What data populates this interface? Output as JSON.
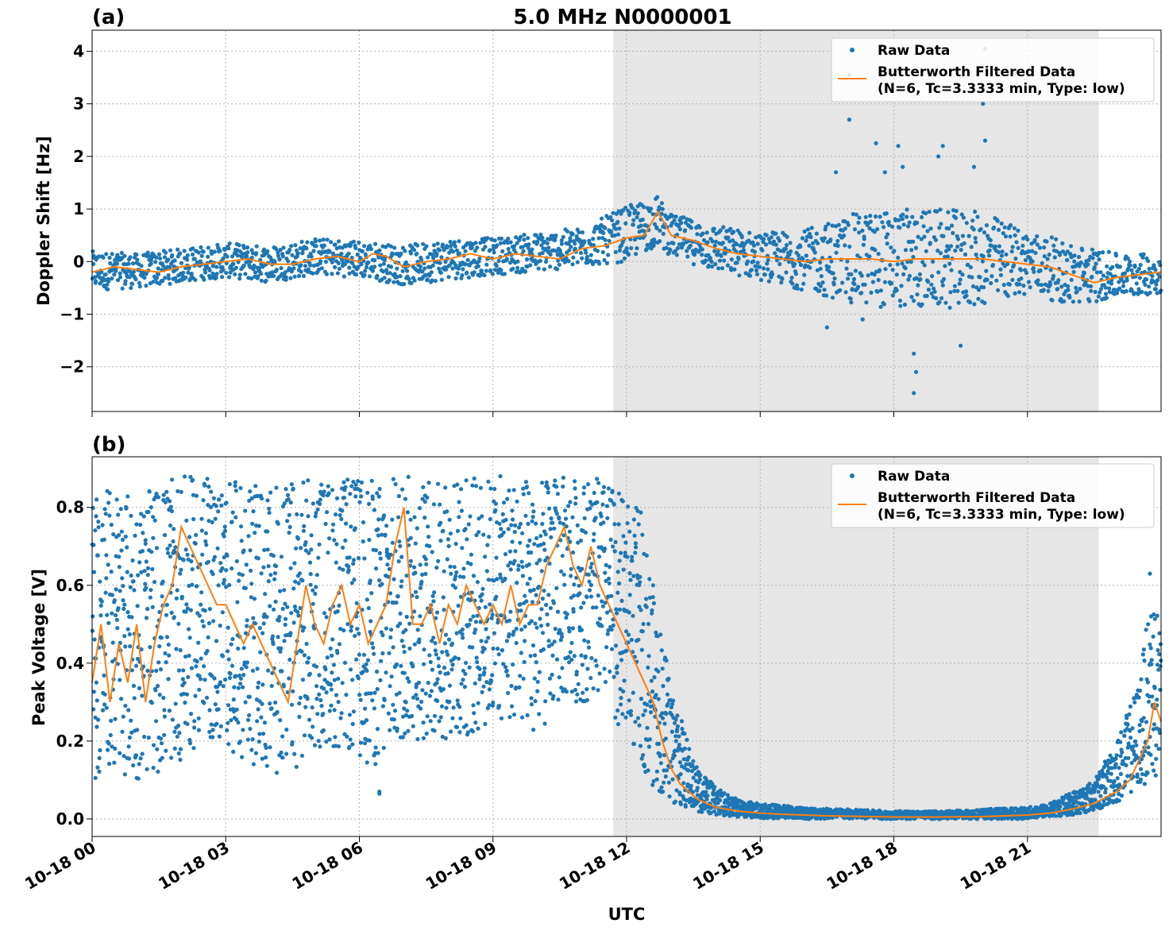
{
  "figure": {
    "title": "5.0 MHz N0000001",
    "xlabel": "UTC"
  },
  "colors": {
    "raw": "#1f77b4",
    "filtered": "#ff7f0e",
    "shade": "#e6e6e6",
    "grid": "#b0b0b0"
  },
  "legend": {
    "raw_label": "Raw Data",
    "filtered_line1": "Butterworth Filtered Data",
    "filtered_line2": "(N=6, Tc=3.3333 min, Type: low)"
  },
  "chart_data": [
    {
      "type": "scatter",
      "panel_label": "(a)",
      "ylabel": "Doppler Shift [Hz]",
      "xlim": [
        0,
        24
      ],
      "ylim": [
        -2.85,
        4.4
      ],
      "x_unit": "hours UTC on 10-18",
      "yticks": [
        -2,
        -1,
        0,
        1,
        2,
        3,
        4
      ],
      "ytick_labels": [
        "−2",
        "−1",
        "0",
        "1",
        "2",
        "3",
        "4"
      ],
      "xticks": [
        0,
        3,
        6,
        9,
        12,
        15,
        18,
        21
      ],
      "xtick_labels": [
        "10-18 00",
        "10-18 03",
        "10-18 06",
        "10-18 09",
        "10-18 12",
        "10-18 15",
        "10-18 18",
        "10-18 21"
      ],
      "shaded_interval": [
        11.7,
        22.6
      ],
      "grid": true,
      "legend_position": "top-right",
      "series": [
        {
          "name": "Butterworth Filtered Data",
          "kind": "line",
          "points": [
            [
              0,
              -0.2
            ],
            [
              0.5,
              -0.1
            ],
            [
              1,
              -0.15
            ],
            [
              1.5,
              -0.2
            ],
            [
              2,
              -0.1
            ],
            [
              2.5,
              -0.05
            ],
            [
              3,
              0.0
            ],
            [
              3.5,
              0.05
            ],
            [
              4,
              -0.05
            ],
            [
              4.5,
              -0.05
            ],
            [
              5,
              0.05
            ],
            [
              5.5,
              0.1
            ],
            [
              6,
              0.0
            ],
            [
              6.3,
              0.15
            ],
            [
              6.6,
              0.1
            ],
            [
              7,
              -0.1
            ],
            [
              7.5,
              0.0
            ],
            [
              8,
              0.05
            ],
            [
              8.5,
              0.15
            ],
            [
              9,
              0.05
            ],
            [
              9.5,
              0.15
            ],
            [
              10,
              0.1
            ],
            [
              10.5,
              0.05
            ],
            [
              11,
              0.25
            ],
            [
              11.5,
              0.3
            ],
            [
              12,
              0.45
            ],
            [
              12.4,
              0.5
            ],
            [
              12.7,
              0.95
            ],
            [
              13,
              0.5
            ],
            [
              13.5,
              0.4
            ],
            [
              14,
              0.25
            ],
            [
              14.5,
              0.15
            ],
            [
              15,
              0.1
            ],
            [
              15.5,
              0.05
            ],
            [
              16,
              0.0
            ],
            [
              16.5,
              0.05
            ],
            [
              17,
              0.05
            ],
            [
              17.5,
              0.05
            ],
            [
              18,
              0.0
            ],
            [
              18.5,
              0.05
            ],
            [
              19,
              0.05
            ],
            [
              19.5,
              0.05
            ],
            [
              20,
              0.05
            ],
            [
              20.5,
              0.0
            ],
            [
              21,
              -0.05
            ],
            [
              21.5,
              -0.1
            ],
            [
              22,
              -0.25
            ],
            [
              22.5,
              -0.4
            ],
            [
              23,
              -0.3
            ],
            [
              23.5,
              -0.25
            ],
            [
              24,
              -0.2
            ]
          ]
        },
        {
          "name": "Raw Data",
          "kind": "points",
          "band": [
            [
              0,
              -0.55,
              0.2
            ],
            [
              1,
              -0.5,
              0.15
            ],
            [
              2,
              -0.4,
              0.25
            ],
            [
              3,
              -0.3,
              0.35
            ],
            [
              4,
              -0.4,
              0.3
            ],
            [
              5,
              -0.25,
              0.45
            ],
            [
              6,
              -0.3,
              0.4
            ],
            [
              7,
              -0.45,
              0.3
            ],
            [
              8,
              -0.35,
              0.45
            ],
            [
              9,
              -0.25,
              0.45
            ],
            [
              10,
              -0.2,
              0.55
            ],
            [
              11,
              -0.1,
              0.65
            ],
            [
              12,
              0.0,
              1.05
            ],
            [
              12.7,
              0.3,
              1.25
            ],
            [
              13,
              0.1,
              0.9
            ],
            [
              14,
              -0.2,
              0.7
            ],
            [
              15,
              -0.35,
              0.55
            ],
            [
              16,
              -0.55,
              0.6
            ],
            [
              17,
              -0.8,
              0.9
            ],
            [
              18,
              -0.9,
              1.0
            ],
            [
              19,
              -0.9,
              1.0
            ],
            [
              20,
              -0.85,
              0.95
            ],
            [
              21,
              -0.6,
              0.6
            ],
            [
              22,
              -0.85,
              0.35
            ],
            [
              23,
              -0.7,
              0.15
            ],
            [
              24,
              -0.6,
              0.15
            ]
          ],
          "outliers": [
            [
              17.0,
              3.55
            ],
            [
              17.0,
              2.7
            ],
            [
              17.6,
              2.25
            ],
            [
              18.1,
              2.2
            ],
            [
              18.45,
              -2.5
            ],
            [
              18.5,
              -2.1
            ],
            [
              18.45,
              -1.75
            ],
            [
              19.1,
              2.2
            ],
            [
              19.5,
              -1.6
            ],
            [
              20.05,
              4.05
            ],
            [
              20.0,
              3.0
            ],
            [
              20.05,
              2.3
            ],
            [
              19.8,
              1.8
            ],
            [
              16.7,
              1.7
            ],
            [
              17.8,
              1.7
            ],
            [
              18.2,
              1.8
            ],
            [
              16.5,
              -1.25
            ],
            [
              17.3,
              -1.1
            ],
            [
              19.0,
              2.0
            ]
          ]
        }
      ]
    },
    {
      "type": "scatter",
      "panel_label": "(b)",
      "ylabel": "Peak Voltage [V]",
      "xlim": [
        0,
        24
      ],
      "ylim": [
        -0.045,
        0.93
      ],
      "x_unit": "hours UTC on 10-18",
      "yticks": [
        0.0,
        0.2,
        0.4,
        0.6,
        0.8
      ],
      "ytick_labels": [
        "0.0",
        "0.2",
        "0.4",
        "0.6",
        "0.8"
      ],
      "xticks": [
        0,
        3,
        6,
        9,
        12,
        15,
        18,
        21
      ],
      "xtick_labels": [
        "10-18 00",
        "10-18 03",
        "10-18 06",
        "10-18 09",
        "10-18 12",
        "10-18 15",
        "10-18 18",
        "10-18 21"
      ],
      "shaded_interval": [
        11.7,
        22.6
      ],
      "grid": true,
      "legend_position": "top-right",
      "series": [
        {
          "name": "Butterworth Filtered Data",
          "kind": "line",
          "points": [
            [
              0,
              0.35
            ],
            [
              0.2,
              0.5
            ],
            [
              0.4,
              0.3
            ],
            [
              0.6,
              0.45
            ],
            [
              0.8,
              0.35
            ],
            [
              1.0,
              0.5
            ],
            [
              1.2,
              0.3
            ],
            [
              1.4,
              0.45
            ],
            [
              1.6,
              0.55
            ],
            [
              1.8,
              0.6
            ],
            [
              2.0,
              0.75
            ],
            [
              2.2,
              0.7
            ],
            [
              2.4,
              0.65
            ],
            [
              2.6,
              0.6
            ],
            [
              2.8,
              0.55
            ],
            [
              3.0,
              0.55
            ],
            [
              3.2,
              0.5
            ],
            [
              3.4,
              0.45
            ],
            [
              3.6,
              0.5
            ],
            [
              3.8,
              0.45
            ],
            [
              4.0,
              0.4
            ],
            [
              4.2,
              0.35
            ],
            [
              4.4,
              0.3
            ],
            [
              4.6,
              0.45
            ],
            [
              4.8,
              0.6
            ],
            [
              5.0,
              0.5
            ],
            [
              5.2,
              0.45
            ],
            [
              5.4,
              0.55
            ],
            [
              5.6,
              0.6
            ],
            [
              5.8,
              0.5
            ],
            [
              6.0,
              0.55
            ],
            [
              6.2,
              0.45
            ],
            [
              6.4,
              0.5
            ],
            [
              6.6,
              0.55
            ],
            [
              6.8,
              0.7
            ],
            [
              7.0,
              0.8
            ],
            [
              7.2,
              0.5
            ],
            [
              7.4,
              0.5
            ],
            [
              7.6,
              0.55
            ],
            [
              7.8,
              0.45
            ],
            [
              8.0,
              0.55
            ],
            [
              8.2,
              0.5
            ],
            [
              8.4,
              0.6
            ],
            [
              8.6,
              0.55
            ],
            [
              8.8,
              0.5
            ],
            [
              9.0,
              0.55
            ],
            [
              9.2,
              0.5
            ],
            [
              9.4,
              0.6
            ],
            [
              9.6,
              0.5
            ],
            [
              9.8,
              0.55
            ],
            [
              10.0,
              0.55
            ],
            [
              10.2,
              0.65
            ],
            [
              10.4,
              0.7
            ],
            [
              10.6,
              0.75
            ],
            [
              10.8,
              0.65
            ],
            [
              11.0,
              0.6
            ],
            [
              11.2,
              0.7
            ],
            [
              11.4,
              0.6
            ],
            [
              11.6,
              0.55
            ],
            [
              11.8,
              0.5
            ],
            [
              12.0,
              0.45
            ],
            [
              12.2,
              0.4
            ],
            [
              12.4,
              0.35
            ],
            [
              12.6,
              0.3
            ],
            [
              12.8,
              0.2
            ],
            [
              13.0,
              0.13
            ],
            [
              13.2,
              0.09
            ],
            [
              13.4,
              0.07
            ],
            [
              13.6,
              0.05
            ],
            [
              13.8,
              0.04
            ],
            [
              14.0,
              0.03
            ],
            [
              14.5,
              0.02
            ],
            [
              15.0,
              0.015
            ],
            [
              15.5,
              0.012
            ],
            [
              16.0,
              0.01
            ],
            [
              16.5,
              0.008
            ],
            [
              17.0,
              0.007
            ],
            [
              18.0,
              0.005
            ],
            [
              19.0,
              0.005
            ],
            [
              20.0,
              0.006
            ],
            [
              21.0,
              0.01
            ],
            [
              21.5,
              0.015
            ],
            [
              22.0,
              0.025
            ],
            [
              22.5,
              0.04
            ],
            [
              23.0,
              0.07
            ],
            [
              23.3,
              0.1
            ],
            [
              23.5,
              0.15
            ],
            [
              23.7,
              0.2
            ],
            [
              23.85,
              0.3
            ],
            [
              24.0,
              0.25
            ]
          ]
        },
        {
          "name": "Raw Data",
          "kind": "points",
          "band": [
            [
              0,
              0.1,
              0.84
            ],
            [
              0.5,
              0.12,
              0.86
            ],
            [
              1,
              0.1,
              0.82
            ],
            [
              1.5,
              0.12,
              0.86
            ],
            [
              2,
              0.15,
              0.88
            ],
            [
              2.5,
              0.2,
              0.88
            ],
            [
              3,
              0.18,
              0.87
            ],
            [
              3.5,
              0.15,
              0.86
            ],
            [
              4,
              0.1,
              0.85
            ],
            [
              4.5,
              0.12,
              0.87
            ],
            [
              5,
              0.18,
              0.88
            ],
            [
              5.5,
              0.18,
              0.87
            ],
            [
              6,
              0.15,
              0.88
            ],
            [
              6.5,
              0.12,
              0.87
            ],
            [
              7,
              0.2,
              0.89
            ],
            [
              7.5,
              0.2,
              0.87
            ],
            [
              8,
              0.2,
              0.88
            ],
            [
              8.5,
              0.2,
              0.88
            ],
            [
              9,
              0.25,
              0.88
            ],
            [
              9.5,
              0.25,
              0.88
            ],
            [
              10,
              0.2,
              0.87
            ],
            [
              10.5,
              0.3,
              0.88
            ],
            [
              11,
              0.3,
              0.88
            ],
            [
              11.5,
              0.3,
              0.87
            ],
            [
              12,
              0.2,
              0.82
            ],
            [
              12.3,
              0.15,
              0.8
            ],
            [
              12.6,
              0.08,
              0.6
            ],
            [
              13,
              0.04,
              0.35
            ],
            [
              13.5,
              0.02,
              0.15
            ],
            [
              14,
              0.01,
              0.08
            ],
            [
              14.5,
              0.005,
              0.05
            ],
            [
              15,
              0.002,
              0.04
            ],
            [
              16,
              0.0,
              0.03
            ],
            [
              17,
              0.0,
              0.025
            ],
            [
              18,
              0.0,
              0.02
            ],
            [
              19,
              0.0,
              0.02
            ],
            [
              20,
              0.0,
              0.025
            ],
            [
              21,
              0.0,
              0.03
            ],
            [
              21.5,
              0.005,
              0.04
            ],
            [
              22,
              0.01,
              0.07
            ],
            [
              22.5,
              0.02,
              0.1
            ],
            [
              23,
              0.04,
              0.2
            ],
            [
              23.5,
              0.08,
              0.35
            ],
            [
              23.8,
              0.1,
              0.6
            ],
            [
              24,
              0.1,
              0.55
            ]
          ],
          "outliers": [
            [
              6.45,
              0.07
            ],
            [
              6.45,
              0.065
            ],
            [
              0.1,
              0.82
            ],
            [
              23.75,
              0.63
            ]
          ]
        }
      ]
    }
  ]
}
